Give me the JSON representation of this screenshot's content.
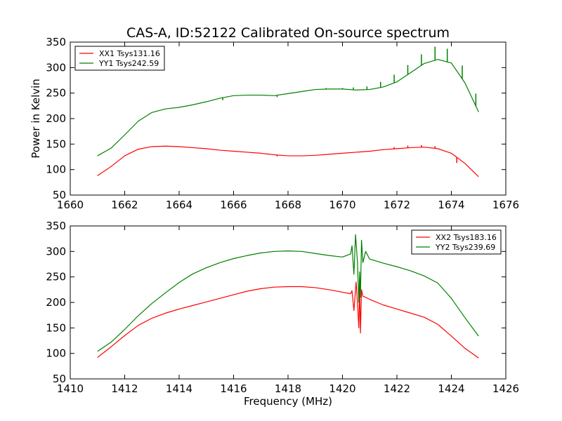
{
  "title": "CAS-A, ID:52122 Calibrated On-source spectrum",
  "chart_data": [
    {
      "type": "line",
      "title": "CAS-A, ID:52122 Calibrated On-source spectrum",
      "xlabel": "",
      "ylabel": "Power in Kelvin",
      "xlim": [
        1660,
        1676
      ],
      "ylim": [
        50,
        350
      ],
      "xticks": [
        1660,
        1662,
        1664,
        1666,
        1668,
        1670,
        1672,
        1674,
        1676
      ],
      "yticks": [
        50,
        100,
        150,
        200,
        250,
        300,
        350
      ],
      "legend_position": "top-left",
      "grid": false,
      "series": [
        {
          "name": "XX1 Tsys131.16",
          "color": "#ff0000",
          "x": [
            1661.0,
            1661.5,
            1662.0,
            1662.5,
            1663.0,
            1663.5,
            1664.0,
            1664.5,
            1665.0,
            1665.5,
            1666.0,
            1666.5,
            1667.0,
            1667.5,
            1668.0,
            1668.5,
            1669.0,
            1669.5,
            1670.0,
            1670.5,
            1671.0,
            1671.5,
            1672.0,
            1672.5,
            1673.0,
            1673.5,
            1674.0,
            1674.5,
            1675.0
          ],
          "values": [
            88,
            106,
            127,
            140,
            145,
            146,
            145,
            143,
            141,
            138,
            136,
            134,
            132,
            129,
            127,
            127,
            128,
            130,
            132,
            134,
            136,
            139,
            141,
            143,
            144,
            141,
            132,
            112,
            86
          ],
          "spikes": [
            {
              "x": 1667.6,
              "to": 126
            },
            {
              "x": 1671.9,
              "to": 144
            },
            {
              "x": 1672.4,
              "to": 147
            },
            {
              "x": 1672.9,
              "to": 148
            },
            {
              "x": 1673.4,
              "to": 146
            },
            {
              "x": 1674.2,
              "to": 113
            },
            {
              "x": 1674.8,
              "to": 96
            }
          ]
        },
        {
          "name": "YY1 Tsys242.59",
          "color": "#008000",
          "x": [
            1661.0,
            1661.5,
            1662.0,
            1662.5,
            1663.0,
            1663.5,
            1664.0,
            1664.5,
            1665.0,
            1665.5,
            1666.0,
            1666.5,
            1667.0,
            1667.5,
            1668.0,
            1668.5,
            1669.0,
            1669.5,
            1670.0,
            1670.5,
            1671.0,
            1671.5,
            1672.0,
            1672.5,
            1673.0,
            1673.5,
            1674.0,
            1674.5,
            1675.0
          ],
          "values": [
            127,
            142,
            168,
            195,
            212,
            219,
            222,
            227,
            233,
            240,
            245,
            246,
            246,
            245,
            249,
            253,
            257,
            258,
            258,
            256,
            257,
            262,
            272,
            290,
            308,
            316,
            309,
            270,
            213
          ],
          "spikes": [
            {
              "x": 1665.6,
              "to": 236
            },
            {
              "x": 1667.6,
              "to": 242
            },
            {
              "x": 1669.4,
              "to": 260
            },
            {
              "x": 1670.0,
              "to": 260
            },
            {
              "x": 1670.4,
              "to": 261
            },
            {
              "x": 1670.9,
              "to": 263
            },
            {
              "x": 1671.4,
              "to": 272
            },
            {
              "x": 1671.9,
              "to": 286
            },
            {
              "x": 1672.4,
              "to": 305
            },
            {
              "x": 1672.9,
              "to": 326
            },
            {
              "x": 1673.4,
              "to": 341
            },
            {
              "x": 1673.85,
              "to": 337
            },
            {
              "x": 1674.4,
              "to": 304
            },
            {
              "x": 1674.9,
              "to": 249
            }
          ]
        }
      ]
    },
    {
      "type": "line",
      "title": "",
      "xlabel": "Frequency (MHz)",
      "ylabel": "",
      "xlim": [
        1410,
        1426
      ],
      "ylim": [
        50,
        350
      ],
      "xticks": [
        1410,
        1412,
        1414,
        1416,
        1418,
        1420,
        1422,
        1424,
        1426
      ],
      "yticks": [
        50,
        100,
        150,
        200,
        250,
        300,
        350
      ],
      "legend_position": "top-right",
      "grid": false,
      "series": [
        {
          "name": "XX2 Tsys183.16",
          "color": "#ff0000",
          "x": [
            1411.0,
            1411.5,
            1412.0,
            1412.5,
            1413.0,
            1413.5,
            1414.0,
            1414.5,
            1415.0,
            1415.5,
            1416.0,
            1416.5,
            1417.0,
            1417.5,
            1418.0,
            1418.5,
            1419.0,
            1419.5,
            1420.0,
            1420.3,
            1420.35,
            1420.42,
            1420.5,
            1420.55,
            1420.6,
            1420.63,
            1420.66,
            1420.7,
            1420.75,
            1420.85,
            1421.0,
            1421.5,
            1422.0,
            1422.5,
            1423.0,
            1423.5,
            1424.0,
            1424.5,
            1425.0
          ],
          "values": [
            92,
            113,
            135,
            155,
            169,
            179,
            187,
            194,
            201,
            208,
            215,
            222,
            227,
            230,
            231,
            231,
            229,
            225,
            220,
            217,
            223,
            184,
            240,
            200,
            150,
            231,
            140,
            225,
            212,
            210,
            206,
            195,
            187,
            179,
            171,
            157,
            134,
            110,
            91
          ]
        },
        {
          "name": "YY2 Tsys239.69",
          "color": "#008000",
          "x": [
            1411.0,
            1411.5,
            1412.0,
            1412.5,
            1413.0,
            1413.5,
            1414.0,
            1414.5,
            1415.0,
            1415.5,
            1416.0,
            1416.5,
            1417.0,
            1417.5,
            1418.0,
            1418.5,
            1419.0,
            1419.5,
            1420.0,
            1420.3,
            1420.35,
            1420.42,
            1420.48,
            1420.55,
            1420.6,
            1420.63,
            1420.66,
            1420.7,
            1420.75,
            1420.85,
            1421.0,
            1421.5,
            1422.0,
            1422.5,
            1423.0,
            1423.5,
            1424.0,
            1424.5,
            1425.0
          ],
          "values": [
            104,
            122,
            147,
            174,
            198,
            219,
            239,
            256,
            268,
            278,
            286,
            292,
            297,
            300,
            301,
            300,
            296,
            292,
            289,
            295,
            311,
            255,
            333,
            280,
            200,
            260,
            210,
            322,
            278,
            300,
            285,
            277,
            270,
            262,
            252,
            238,
            208,
            170,
            134
          ]
        }
      ]
    }
  ]
}
